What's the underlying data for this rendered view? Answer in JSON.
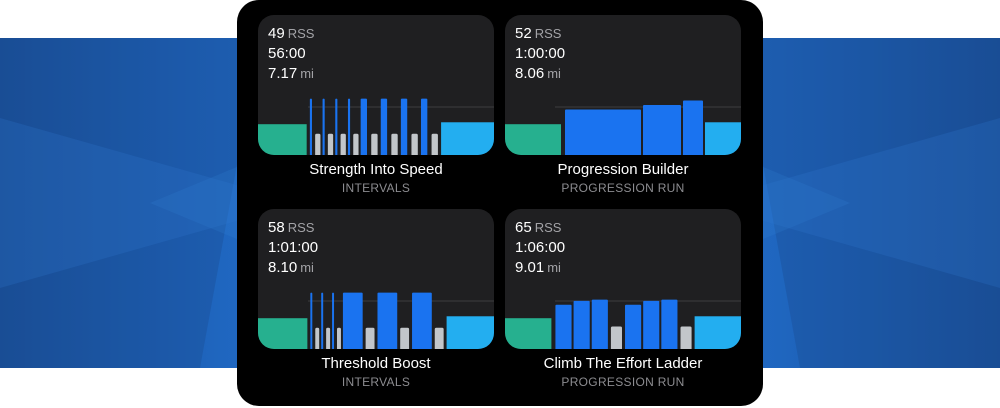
{
  "workouts": [
    {
      "rss_value": "49",
      "rss_unit": "RSS",
      "duration": "56:00",
      "distance_value": "7.17",
      "distance_unit": "mi",
      "title": "Strength Into Speed",
      "type": "INTERVALS",
      "profile": [
        {
          "kind": "warmup",
          "level": 0.45,
          "weight": 46
        },
        {
          "kind": "gap",
          "weight": 3
        },
        {
          "kind": "work",
          "level": 0.85,
          "weight": 2
        },
        {
          "kind": "gap",
          "weight": 3
        },
        {
          "kind": "recovery",
          "level": 0.3,
          "weight": 5
        },
        {
          "kind": "gap",
          "weight": 2
        },
        {
          "kind": "work",
          "level": 0.85,
          "weight": 2
        },
        {
          "kind": "gap",
          "weight": 3
        },
        {
          "kind": "recovery",
          "level": 0.3,
          "weight": 5
        },
        {
          "kind": "gap",
          "weight": 2
        },
        {
          "kind": "work",
          "level": 0.85,
          "weight": 2
        },
        {
          "kind": "gap",
          "weight": 3
        },
        {
          "kind": "recovery",
          "level": 0.3,
          "weight": 5
        },
        {
          "kind": "gap",
          "weight": 2
        },
        {
          "kind": "work",
          "level": 0.85,
          "weight": 2
        },
        {
          "kind": "gap",
          "weight": 3
        },
        {
          "kind": "recovery",
          "level": 0.3,
          "weight": 5
        },
        {
          "kind": "gap",
          "weight": 2
        },
        {
          "kind": "work",
          "level": 0.85,
          "weight": 6
        },
        {
          "kind": "gap",
          "weight": 4
        },
        {
          "kind": "recovery",
          "level": 0.3,
          "weight": 6
        },
        {
          "kind": "gap",
          "weight": 3
        },
        {
          "kind": "work",
          "level": 0.85,
          "weight": 6
        },
        {
          "kind": "gap",
          "weight": 4
        },
        {
          "kind": "recovery",
          "level": 0.3,
          "weight": 6
        },
        {
          "kind": "gap",
          "weight": 3
        },
        {
          "kind": "work",
          "level": 0.85,
          "weight": 6
        },
        {
          "kind": "gap",
          "weight": 4
        },
        {
          "kind": "recovery",
          "level": 0.3,
          "weight": 6
        },
        {
          "kind": "gap",
          "weight": 3
        },
        {
          "kind": "work",
          "level": 0.85,
          "weight": 6
        },
        {
          "kind": "gap",
          "weight": 4
        },
        {
          "kind": "recovery",
          "level": 0.3,
          "weight": 6
        },
        {
          "kind": "gap",
          "weight": 3
        },
        {
          "kind": "cooldown",
          "level": 0.48,
          "weight": 50
        }
      ]
    },
    {
      "rss_value": "52",
      "rss_unit": "RSS",
      "duration": "1:00:00",
      "distance_value": "8.06",
      "distance_unit": "mi",
      "title": "Progression Builder",
      "type": "PROGRESSION RUN",
      "profile": [
        {
          "kind": "warmup",
          "level": 0.45,
          "weight": 56
        },
        {
          "kind": "gap",
          "weight": 4
        },
        {
          "kind": "work",
          "level": 0.68,
          "weight": 76
        },
        {
          "kind": "gap",
          "weight": 2
        },
        {
          "kind": "work",
          "level": 0.75,
          "weight": 38
        },
        {
          "kind": "gap",
          "weight": 2
        },
        {
          "kind": "work",
          "level": 0.82,
          "weight": 20
        },
        {
          "kind": "gap",
          "weight": 2
        },
        {
          "kind": "cooldown",
          "level": 0.48,
          "weight": 36
        }
      ]
    },
    {
      "rss_value": "58",
      "rss_unit": "RSS",
      "duration": "1:01:00",
      "distance_value": "8.10",
      "distance_unit": "mi",
      "title": "Threshold Boost",
      "type": "INTERVALS",
      "profile": [
        {
          "kind": "warmup",
          "level": 0.45,
          "weight": 50
        },
        {
          "kind": "gap",
          "weight": 3
        },
        {
          "kind": "work",
          "level": 0.85,
          "weight": 2
        },
        {
          "kind": "gap",
          "weight": 3
        },
        {
          "kind": "recovery",
          "level": 0.3,
          "weight": 4
        },
        {
          "kind": "gap",
          "weight": 2
        },
        {
          "kind": "work",
          "level": 0.85,
          "weight": 2
        },
        {
          "kind": "gap",
          "weight": 3
        },
        {
          "kind": "recovery",
          "level": 0.3,
          "weight": 4
        },
        {
          "kind": "gap",
          "weight": 2
        },
        {
          "kind": "work",
          "level": 0.85,
          "weight": 2
        },
        {
          "kind": "gap",
          "weight": 3
        },
        {
          "kind": "recovery",
          "level": 0.3,
          "weight": 4
        },
        {
          "kind": "gap",
          "weight": 2
        },
        {
          "kind": "work",
          "level": 0.85,
          "weight": 20
        },
        {
          "kind": "gap",
          "weight": 3
        },
        {
          "kind": "recovery",
          "level": 0.3,
          "weight": 9
        },
        {
          "kind": "gap",
          "weight": 3
        },
        {
          "kind": "work",
          "level": 0.85,
          "weight": 20
        },
        {
          "kind": "gap",
          "weight": 3
        },
        {
          "kind": "recovery",
          "level": 0.3,
          "weight": 9
        },
        {
          "kind": "gap",
          "weight": 3
        },
        {
          "kind": "work",
          "level": 0.85,
          "weight": 20
        },
        {
          "kind": "gap",
          "weight": 3
        },
        {
          "kind": "recovery",
          "level": 0.3,
          "weight": 9
        },
        {
          "kind": "gap",
          "weight": 3
        },
        {
          "kind": "cooldown",
          "level": 0.48,
          "weight": 48
        }
      ]
    },
    {
      "rss_value": "65",
      "rss_unit": "RSS",
      "duration": "1:06:00",
      "distance_value": "9.01",
      "distance_unit": "mi",
      "title": "Climb The Effort Ladder",
      "type": "PROGRESSION RUN",
      "profile": [
        {
          "kind": "warmup",
          "level": 0.45,
          "weight": 46
        },
        {
          "kind": "gap",
          "weight": 4
        },
        {
          "kind": "work",
          "level": 0.66,
          "weight": 16
        },
        {
          "kind": "gap",
          "weight": 2
        },
        {
          "kind": "work",
          "level": 0.72,
          "weight": 16
        },
        {
          "kind": "gap",
          "weight": 2
        },
        {
          "kind": "work",
          "level": 0.74,
          "weight": 16
        },
        {
          "kind": "gap",
          "weight": 3
        },
        {
          "kind": "recovery",
          "level": 0.32,
          "weight": 11
        },
        {
          "kind": "gap",
          "weight": 3
        },
        {
          "kind": "work",
          "level": 0.66,
          "weight": 16
        },
        {
          "kind": "gap",
          "weight": 2
        },
        {
          "kind": "work",
          "level": 0.72,
          "weight": 16
        },
        {
          "kind": "gap",
          "weight": 2
        },
        {
          "kind": "work",
          "level": 0.74,
          "weight": 16
        },
        {
          "kind": "gap",
          "weight": 3
        },
        {
          "kind": "recovery",
          "level": 0.32,
          "weight": 11
        },
        {
          "kind": "gap",
          "weight": 3
        },
        {
          "kind": "cooldown",
          "level": 0.48,
          "weight": 46
        }
      ]
    }
  ],
  "colors": {
    "warmup": "#26b08f",
    "work": "#1a73f0",
    "recovery": "#c2c6ca",
    "cooldown": "#23aef0",
    "card": "#1f1f21",
    "panel": "#000000"
  }
}
